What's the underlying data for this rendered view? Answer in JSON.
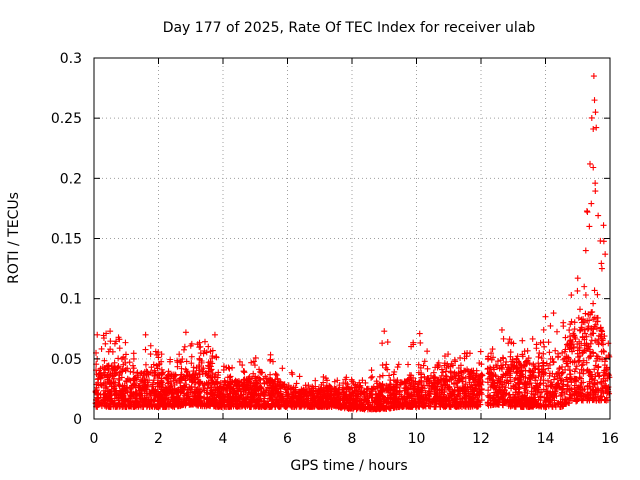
{
  "chart_data": {
    "type": "scatter",
    "title": "Day 177 of 2025, Rate Of TEC Index for receiver ulab",
    "xlabel": "GPS time / hours",
    "ylabel": "ROTI / TECUs",
    "xlim": [
      0,
      16
    ],
    "ylim": [
      0,
      0.3
    ],
    "x_ticks": [
      "0",
      "2",
      "4",
      "6",
      "8",
      "10",
      "12",
      "14",
      "16"
    ],
    "y_ticks": [
      "0",
      "0.05",
      "0.1",
      "0.15",
      "0.2",
      "0.25",
      "0.3"
    ],
    "grid": true,
    "marker": "+",
    "series": [
      {
        "name": "ROTI",
        "color": "#ff0000",
        "envelope": {
          "description": "approximate distribution of the dense ROTI point cloud (hour, typical low, typical high, occasional peak)",
          "points": [
            [
              0.0,
              0.01,
              0.04,
              0.07
            ],
            [
              0.5,
              0.01,
              0.045,
              0.073
            ],
            [
              1.0,
              0.01,
              0.04,
              0.065
            ],
            [
              1.5,
              0.01,
              0.038,
              0.07
            ],
            [
              2.0,
              0.01,
              0.04,
              0.06
            ],
            [
              2.5,
              0.01,
              0.035,
              0.055
            ],
            [
              3.0,
              0.012,
              0.04,
              0.072
            ],
            [
              3.5,
              0.01,
              0.045,
              0.065
            ],
            [
              4.0,
              0.01,
              0.03,
              0.045
            ],
            [
              4.5,
              0.01,
              0.032,
              0.05
            ],
            [
              5.0,
              0.01,
              0.035,
              0.052
            ],
            [
              5.5,
              0.01,
              0.032,
              0.055
            ],
            [
              6.0,
              0.01,
              0.028,
              0.04
            ],
            [
              6.5,
              0.01,
              0.025,
              0.038
            ],
            [
              7.0,
              0.01,
              0.025,
              0.035
            ],
            [
              7.5,
              0.01,
              0.025,
              0.035
            ],
            [
              8.0,
              0.008,
              0.025,
              0.035
            ],
            [
              8.5,
              0.008,
              0.025,
              0.035
            ],
            [
              9.0,
              0.008,
              0.03,
              0.073
            ],
            [
              9.5,
              0.01,
              0.03,
              0.045
            ],
            [
              10.0,
              0.01,
              0.035,
              0.07
            ],
            [
              10.5,
              0.01,
              0.035,
              0.05
            ],
            [
              11.0,
              0.01,
              0.035,
              0.055
            ],
            [
              11.5,
              0.01,
              0.04,
              0.055
            ],
            [
              12.0,
              0.01,
              0.04,
              0.058
            ],
            [
              12.5,
              0.012,
              0.045,
              0.065
            ],
            [
              13.0,
              0.01,
              0.045,
              0.07
            ],
            [
              13.5,
              0.01,
              0.045,
              0.062
            ],
            [
              14.0,
              0.01,
              0.05,
              0.087
            ],
            [
              14.5,
              0.01,
              0.05,
              0.085
            ],
            [
              15.0,
              0.015,
              0.08,
              0.115
            ],
            [
              15.5,
              0.015,
              0.09,
              0.285
            ],
            [
              16.0,
              0.015,
              0.06,
              0.16
            ]
          ]
        },
        "highlighted_points": [
          {
            "x": 15.5,
            "y": 0.285
          },
          {
            "x": 15.52,
            "y": 0.265
          },
          {
            "x": 15.55,
            "y": 0.255
          },
          {
            "x": 15.48,
            "y": 0.241
          },
          {
            "x": 15.38,
            "y": 0.212
          },
          {
            "x": 15.48,
            "y": 0.209
          },
          {
            "x": 15.54,
            "y": 0.196
          },
          {
            "x": 15.42,
            "y": 0.179
          },
          {
            "x": 15.3,
            "y": 0.172
          },
          {
            "x": 15.36,
            "y": 0.16
          },
          {
            "x": 15.8,
            "y": 0.161
          },
          {
            "x": 15.7,
            "y": 0.148
          },
          {
            "x": 15.85,
            "y": 0.137
          },
          {
            "x": 15.25,
            "y": 0.14
          },
          {
            "x": 15.75,
            "y": 0.125
          },
          {
            "x": 15.0,
            "y": 0.117
          },
          {
            "x": 15.2,
            "y": 0.11
          },
          {
            "x": 14.8,
            "y": 0.103
          },
          {
            "x": 14.25,
            "y": 0.088
          },
          {
            "x": 14.0,
            "y": 0.085
          },
          {
            "x": 14.55,
            "y": 0.08
          },
          {
            "x": 12.65,
            "y": 0.074
          },
          {
            "x": 0.5,
            "y": 0.073
          },
          {
            "x": 9.0,
            "y": 0.073
          },
          {
            "x": 10.1,
            "y": 0.071
          },
          {
            "x": 0.1,
            "y": 0.07
          },
          {
            "x": 2.85,
            "y": 0.072
          },
          {
            "x": 1.6,
            "y": 0.07
          },
          {
            "x": 3.75,
            "y": 0.07
          },
          {
            "x": 9.9,
            "y": 0.062
          }
        ]
      }
    ]
  }
}
